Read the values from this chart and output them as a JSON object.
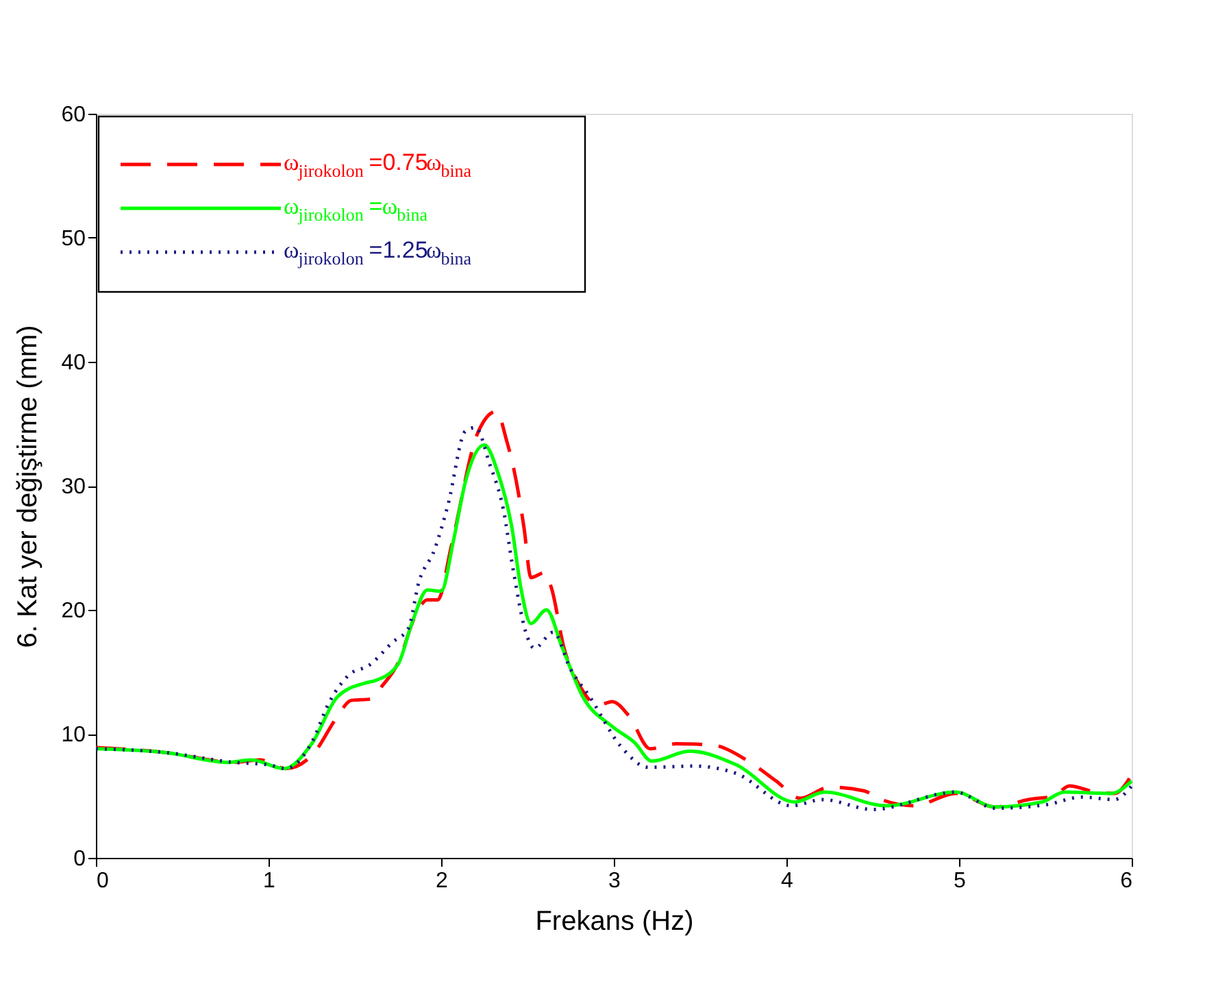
{
  "chart_data": {
    "type": "line",
    "xlabel": "Frekans (Hz)",
    "ylabel": "6. Kat yer değiştirme (mm)",
    "xlim": [
      0,
      6
    ],
    "ylim": [
      0,
      60
    ],
    "xticks": [
      0,
      1,
      2,
      3,
      4,
      5,
      6
    ],
    "yticks": [
      0,
      10,
      20,
      30,
      40,
      50,
      60
    ],
    "grid": false,
    "legend": "top left",
    "marker": "none",
    "series": [
      {
        "name": "ω$_{jirokolon}$ =0.75ω$_{bina}$",
        "color": "#ff0000",
        "line_style": "dashed",
        "x": [
          0,
          0.4,
          0.8,
          0.95,
          1.1,
          1.26,
          1.39,
          1.48,
          1.59,
          1.66,
          1.75,
          1.85,
          1.92,
          1.98,
          2.06,
          2.21,
          2.32,
          2.38,
          2.42,
          2.48,
          2.52,
          2.6,
          2.64,
          2.71,
          2.81,
          2.91,
          2.99,
          3.09,
          3.21,
          3.36,
          3.57,
          3.79,
          3.94,
          4.08,
          4.25,
          4.45,
          4.55,
          4.74,
          4.98,
          5.21,
          5.4,
          5.55,
          5.64,
          5.79,
          5.9,
          6
        ],
        "values": [
          8.9,
          8.5,
          7.7,
          7.9,
          7.2,
          8.4,
          11.2,
          12.7,
          12.8,
          13.9,
          15.7,
          19.5,
          20.8,
          20.8,
          25.2,
          34.2,
          36.0,
          33.6,
          31.4,
          26.6,
          22.6,
          23,
          21.7,
          17,
          13.7,
          12.3,
          12.6,
          11.4,
          8.8,
          9.2,
          9.1,
          7.7,
          6.2,
          4.8,
          5.7,
          5.4,
          4.7,
          4.2,
          5.2,
          4.1,
          4.7,
          5.0,
          5.8,
          5.3,
          5.2,
          6.7
        ]
      },
      {
        "name": "ω$_{jirokolon}$ =ω$_{bina}$",
        "color": "#00ff00",
        "line_style": "solid",
        "x": [
          0,
          0.4,
          0.77,
          0.9,
          1.09,
          1.25,
          1.4,
          1.56,
          1.62,
          1.75,
          1.83,
          1.92,
          2.0,
          2.07,
          2.14,
          2.25,
          2.33,
          2.41,
          2.46,
          2.52,
          2.61,
          2.7,
          2.82,
          2.99,
          3.12,
          3.22,
          3.44,
          3.71,
          4.05,
          4.22,
          4.58,
          4.98,
          5.21,
          5.48,
          5.61,
          5.88,
          6
        ],
        "values": [
          8.8,
          8.5,
          7.7,
          7.9,
          7.2,
          9.2,
          13.0,
          14.1,
          14.3,
          15.6,
          18.9,
          21.6,
          21.5,
          25.5,
          30.3,
          33.3,
          31,
          26.6,
          21.9,
          18.9,
          20,
          17,
          13.0,
          10.6,
          9.3,
          7.8,
          8.6,
          7.5,
          4.5,
          5.3,
          4.2,
          5.3,
          4.1,
          4.5,
          5.3,
          5.2,
          6.2
        ]
      },
      {
        "name": "ω$_{jirokolon}$ =1.25ω$_{bina}$",
        "color": "#1a1a80",
        "line_style": "dotted",
        "x": [
          0,
          0.4,
          0.8,
          1.0,
          1.1,
          1.25,
          1.35,
          1.47,
          1.58,
          1.72,
          1.81,
          1.87,
          1.96,
          2.04,
          2.14,
          2.2,
          2.28,
          2.36,
          2.42,
          2.49,
          2.54,
          2.65,
          2.75,
          2.86,
          3.04,
          3.2,
          3.47,
          3.71,
          4.03,
          4.21,
          4.5,
          4.98,
          5.21,
          5.51,
          5.71,
          5.9,
          6
        ],
        "values": [
          8.8,
          8.5,
          7.7,
          7.5,
          7.2,
          9.3,
          12.5,
          14.8,
          15.5,
          17.4,
          18.5,
          22.2,
          24.8,
          28.5,
          34.4,
          34.7,
          31.8,
          28.1,
          23,
          18.2,
          16.9,
          18.2,
          15.2,
          13,
          9.0,
          7.3,
          7.4,
          6.8,
          4.2,
          4.7,
          3.9,
          5.3,
          4.0,
          4.3,
          4.9,
          4.7,
          5.8
        ]
      }
    ]
  }
}
